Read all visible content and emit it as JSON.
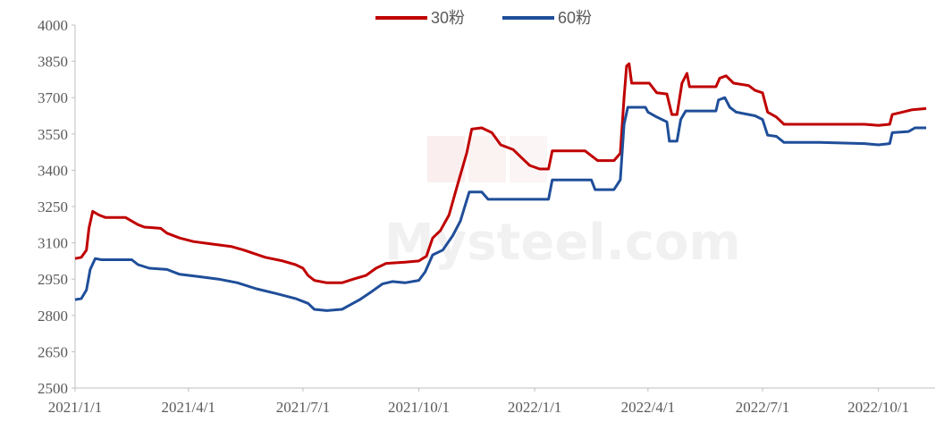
{
  "chart_data": {
    "type": "line",
    "title": "",
    "xlabel": "",
    "ylabel": "",
    "ylim": [
      2500,
      4000
    ],
    "y_ticks": [
      2500,
      2650,
      2800,
      2950,
      3100,
      3250,
      3400,
      3550,
      3700,
      3850,
      4000
    ],
    "x_ticks": [
      "2021/1/1",
      "2021/4/1",
      "2021/7/1",
      "2021/10/1",
      "2022/1/1",
      "2022/4/1",
      "2022/7/1",
      "2022/10/1"
    ],
    "x_range": [
      "2021-01-01",
      "2022-11-15"
    ],
    "grid": false,
    "legend_position": "top-center",
    "watermark": "Mysteel.com",
    "series": [
      {
        "name": "30粉",
        "color": "#c00000",
        "points": [
          [
            "2021-01-01",
            3035
          ],
          [
            "2021-01-06",
            3040
          ],
          [
            "2021-01-10",
            3070
          ],
          [
            "2021-01-12",
            3160
          ],
          [
            "2021-01-15",
            3230
          ],
          [
            "2021-01-20",
            3215
          ],
          [
            "2021-01-25",
            3205
          ],
          [
            "2021-02-10",
            3205
          ],
          [
            "2021-02-20",
            3175
          ],
          [
            "2021-02-25",
            3165
          ],
          [
            "2021-03-10",
            3160
          ],
          [
            "2021-03-15",
            3140
          ],
          [
            "2021-03-25",
            3120
          ],
          [
            "2021-04-05",
            3105
          ],
          [
            "2021-04-20",
            3095
          ],
          [
            "2021-05-05",
            3085
          ],
          [
            "2021-05-15",
            3070
          ],
          [
            "2021-06-01",
            3040
          ],
          [
            "2021-06-15",
            3025
          ],
          [
            "2021-06-25",
            3010
          ],
          [
            "2021-07-01",
            2995
          ],
          [
            "2021-07-05",
            2965
          ],
          [
            "2021-07-10",
            2945
          ],
          [
            "2021-07-20",
            2935
          ],
          [
            "2021-08-01",
            2935
          ],
          [
            "2021-08-10",
            2950
          ],
          [
            "2021-08-20",
            2965
          ],
          [
            "2021-08-28",
            2995
          ],
          [
            "2021-09-05",
            3015
          ],
          [
            "2021-09-20",
            3020
          ],
          [
            "2021-10-01",
            3025
          ],
          [
            "2021-10-07",
            3045
          ],
          [
            "2021-10-12",
            3120
          ],
          [
            "2021-10-18",
            3150
          ],
          [
            "2021-10-25",
            3215
          ],
          [
            "2021-11-01",
            3345
          ],
          [
            "2021-11-08",
            3470
          ],
          [
            "2021-11-12",
            3570
          ],
          [
            "2021-11-20",
            3575
          ],
          [
            "2021-11-28",
            3555
          ],
          [
            "2021-12-05",
            3505
          ],
          [
            "2021-12-15",
            3485
          ],
          [
            "2021-12-22",
            3450
          ],
          [
            "2021-12-28",
            3420
          ],
          [
            "2022-01-05",
            3405
          ],
          [
            "2022-01-12",
            3405
          ],
          [
            "2022-01-15",
            3480
          ],
          [
            "2022-02-10",
            3480
          ],
          [
            "2022-02-20",
            3440
          ],
          [
            "2022-03-05",
            3440
          ],
          [
            "2022-03-10",
            3470
          ],
          [
            "2022-03-13",
            3700
          ],
          [
            "2022-03-15",
            3830
          ],
          [
            "2022-03-17",
            3840
          ],
          [
            "2022-03-19",
            3760
          ],
          [
            "2022-04-02",
            3760
          ],
          [
            "2022-04-08",
            3720
          ],
          [
            "2022-04-16",
            3715
          ],
          [
            "2022-04-20",
            3630
          ],
          [
            "2022-04-24",
            3630
          ],
          [
            "2022-04-28",
            3760
          ],
          [
            "2022-05-02",
            3800
          ],
          [
            "2022-05-04",
            3745
          ],
          [
            "2022-05-25",
            3745
          ],
          [
            "2022-05-28",
            3780
          ],
          [
            "2022-06-02",
            3790
          ],
          [
            "2022-06-08",
            3760
          ],
          [
            "2022-06-20",
            3750
          ],
          [
            "2022-06-25",
            3730
          ],
          [
            "2022-07-01",
            3720
          ],
          [
            "2022-07-05",
            3640
          ],
          [
            "2022-07-12",
            3620
          ],
          [
            "2022-07-18",
            3590
          ],
          [
            "2022-08-15",
            3590
          ],
          [
            "2022-09-20",
            3590
          ],
          [
            "2022-10-01",
            3585
          ],
          [
            "2022-10-10",
            3590
          ],
          [
            "2022-10-12",
            3630
          ],
          [
            "2022-10-20",
            3640
          ],
          [
            "2022-10-28",
            3650
          ],
          [
            "2022-11-08",
            3655
          ]
        ]
      },
      {
        "name": "60粉",
        "color": "#1f4e99",
        "points": [
          [
            "2021-01-01",
            2865
          ],
          [
            "2021-01-06",
            2870
          ],
          [
            "2021-01-10",
            2905
          ],
          [
            "2021-01-13",
            2990
          ],
          [
            "2021-01-17",
            3035
          ],
          [
            "2021-01-22",
            3030
          ],
          [
            "2021-02-15",
            3030
          ],
          [
            "2021-02-20",
            3010
          ],
          [
            "2021-03-01",
            2995
          ],
          [
            "2021-03-15",
            2990
          ],
          [
            "2021-03-25",
            2970
          ],
          [
            "2021-04-10",
            2960
          ],
          [
            "2021-04-25",
            2950
          ],
          [
            "2021-05-10",
            2935
          ],
          [
            "2021-05-25",
            2910
          ],
          [
            "2021-06-10",
            2890
          ],
          [
            "2021-06-25",
            2870
          ],
          [
            "2021-07-05",
            2850
          ],
          [
            "2021-07-10",
            2825
          ],
          [
            "2021-07-20",
            2820
          ],
          [
            "2021-08-01",
            2825
          ],
          [
            "2021-08-08",
            2845
          ],
          [
            "2021-08-15",
            2865
          ],
          [
            "2021-08-25",
            2900
          ],
          [
            "2021-09-02",
            2930
          ],
          [
            "2021-09-10",
            2940
          ],
          [
            "2021-09-20",
            2935
          ],
          [
            "2021-10-01",
            2945
          ],
          [
            "2021-10-06",
            2980
          ],
          [
            "2021-10-12",
            3050
          ],
          [
            "2021-10-20",
            3070
          ],
          [
            "2021-10-28",
            3130
          ],
          [
            "2021-11-03",
            3190
          ],
          [
            "2021-11-10",
            3310
          ],
          [
            "2021-11-20",
            3310
          ],
          [
            "2021-11-25",
            3280
          ],
          [
            "2021-12-20",
            3280
          ],
          [
            "2022-01-01",
            3280
          ],
          [
            "2022-01-12",
            3280
          ],
          [
            "2022-01-15",
            3360
          ],
          [
            "2022-02-15",
            3360
          ],
          [
            "2022-02-18",
            3320
          ],
          [
            "2022-03-05",
            3320
          ],
          [
            "2022-03-10",
            3360
          ],
          [
            "2022-03-13",
            3590
          ],
          [
            "2022-03-16",
            3660
          ],
          [
            "2022-03-30",
            3660
          ],
          [
            "2022-04-01",
            3640
          ],
          [
            "2022-04-08",
            3620
          ],
          [
            "2022-04-16",
            3600
          ],
          [
            "2022-04-18",
            3520
          ],
          [
            "2022-04-24",
            3520
          ],
          [
            "2022-04-27",
            3610
          ],
          [
            "2022-05-01",
            3645
          ],
          [
            "2022-05-25",
            3645
          ],
          [
            "2022-05-27",
            3690
          ],
          [
            "2022-06-01",
            3700
          ],
          [
            "2022-06-05",
            3660
          ],
          [
            "2022-06-10",
            3640
          ],
          [
            "2022-06-25",
            3625
          ],
          [
            "2022-07-01",
            3610
          ],
          [
            "2022-07-05",
            3545
          ],
          [
            "2022-07-12",
            3540
          ],
          [
            "2022-07-18",
            3515
          ],
          [
            "2022-08-15",
            3515
          ],
          [
            "2022-09-20",
            3510
          ],
          [
            "2022-10-01",
            3505
          ],
          [
            "2022-10-10",
            3510
          ],
          [
            "2022-10-12",
            3555
          ],
          [
            "2022-10-25",
            3560
          ],
          [
            "2022-10-30",
            3575
          ],
          [
            "2022-11-08",
            3575
          ]
        ]
      }
    ]
  }
}
